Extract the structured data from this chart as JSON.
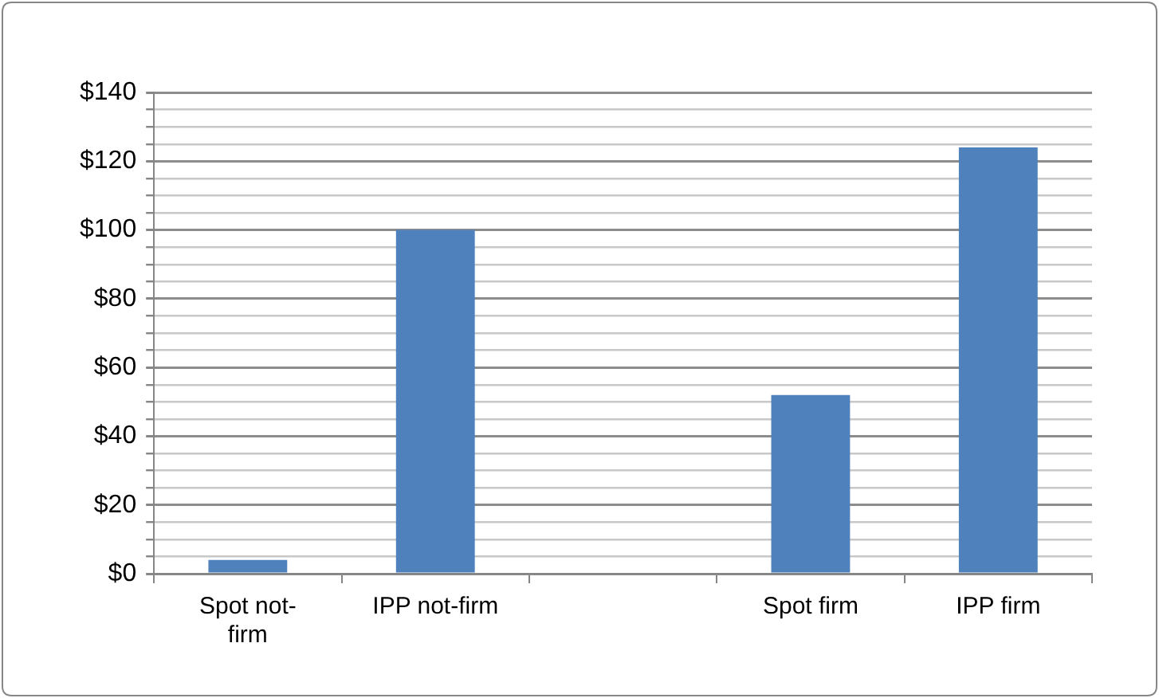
{
  "chart_data": {
    "type": "bar",
    "categories": [
      "Spot not-firm",
      "IPP not-firm",
      null,
      "Spot firm",
      "IPP firm"
    ],
    "values": [
      4,
      100,
      null,
      52,
      124
    ],
    "color": "#4f81bd",
    "ylim": [
      0,
      140
    ],
    "yticks": [
      {
        "value": 0,
        "label": "$0"
      },
      {
        "value": 5,
        "label": null
      },
      {
        "value": 10,
        "label": null
      },
      {
        "value": 15,
        "label": null
      },
      {
        "value": 20,
        "label": "$20"
      },
      {
        "value": 25,
        "label": null
      },
      {
        "value": 30,
        "label": null
      },
      {
        "value": 35,
        "label": null
      },
      {
        "value": 40,
        "label": "$40"
      },
      {
        "value": 45,
        "label": null
      },
      {
        "value": 50,
        "label": null
      },
      {
        "value": 55,
        "label": null
      },
      {
        "value": 60,
        "label": "$60"
      },
      {
        "value": 65,
        "label": null
      },
      {
        "value": 70,
        "label": null
      },
      {
        "value": 75,
        "label": null
      },
      {
        "value": 80,
        "label": "$80"
      },
      {
        "value": 85,
        "label": null
      },
      {
        "value": 90,
        "label": null
      },
      {
        "value": 95,
        "label": null
      },
      {
        "value": 100,
        "label": "$100"
      },
      {
        "value": 105,
        "label": null
      },
      {
        "value": 110,
        "label": null
      },
      {
        "value": 115,
        "label": null
      },
      {
        "value": 120,
        "label": "$120"
      },
      {
        "value": 125,
        "label": null
      },
      {
        "value": 130,
        "label": null
      },
      {
        "value": 135,
        "label": null
      },
      {
        "value": 140,
        "label": "$140"
      }
    ],
    "grid": "y",
    "legend": false
  }
}
